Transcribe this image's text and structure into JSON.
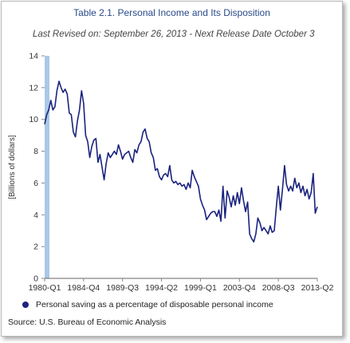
{
  "chart_data": {
    "type": "line",
    "title": "Table 2.1. Personal Income and Its Disposition",
    "subtitle": "Last Revised on: September 26, 2013 - Next Release Date October 3",
    "ylabel": "[Billions of dollars]",
    "xlabel": "",
    "ylim": [
      0,
      14
    ],
    "yticks": [
      "0",
      "2",
      "4",
      "6",
      "8",
      "10",
      "12",
      "14"
    ],
    "xticks": [
      {
        "label": "1980-Q1",
        "x": 1980.0
      },
      {
        "label": "1984-Q4",
        "x": 1984.75
      },
      {
        "label": "1989-Q3",
        "x": 1989.5
      },
      {
        "label": "1994-Q2",
        "x": 1994.25
      },
      {
        "label": "1999-Q1",
        "x": 1999.0
      },
      {
        "label": "2003-Q4",
        "x": 2003.75
      },
      {
        "label": "2008-Q3",
        "x": 2008.5
      },
      {
        "label": "2013-Q2",
        "x": 2013.25
      }
    ],
    "xlim": [
      1980.0,
      2013.25
    ],
    "grid": false,
    "legend_position": "bottom",
    "series": [
      {
        "name": "Personal saving as a percentage of disposable personal income",
        "color": "#1a237e",
        "points": [
          [
            1980.0,
            9.7
          ],
          [
            1980.25,
            10.3
          ],
          [
            1980.5,
            10.6
          ],
          [
            1980.75,
            11.2
          ],
          [
            1981.0,
            10.6
          ],
          [
            1981.25,
            10.8
          ],
          [
            1981.5,
            11.8
          ],
          [
            1981.75,
            12.4
          ],
          [
            1982.0,
            12.0
          ],
          [
            1982.25,
            11.7
          ],
          [
            1982.5,
            11.9
          ],
          [
            1982.75,
            11.6
          ],
          [
            1983.0,
            10.4
          ],
          [
            1983.25,
            10.3
          ],
          [
            1983.5,
            9.2
          ],
          [
            1983.75,
            8.9
          ],
          [
            1984.0,
            9.9
          ],
          [
            1984.25,
            10.6
          ],
          [
            1984.5,
            11.8
          ],
          [
            1984.75,
            11.0
          ],
          [
            1985.0,
            9.0
          ],
          [
            1985.25,
            8.6
          ],
          [
            1985.5,
            7.6
          ],
          [
            1985.75,
            8.3
          ],
          [
            1986.0,
            8.7
          ],
          [
            1986.25,
            8.8
          ],
          [
            1986.5,
            7.3
          ],
          [
            1986.75,
            7.8
          ],
          [
            1987.0,
            7.0
          ],
          [
            1987.25,
            6.2
          ],
          [
            1987.5,
            7.2
          ],
          [
            1987.75,
            7.9
          ],
          [
            1988.0,
            7.6
          ],
          [
            1988.25,
            7.8
          ],
          [
            1988.5,
            8.0
          ],
          [
            1988.75,
            7.8
          ],
          [
            1989.0,
            8.4
          ],
          [
            1989.25,
            8.0
          ],
          [
            1989.5,
            7.5
          ],
          [
            1989.75,
            7.8
          ],
          [
            1990.0,
            7.9
          ],
          [
            1990.25,
            8.0
          ],
          [
            1990.5,
            7.6
          ],
          [
            1990.75,
            7.3
          ],
          [
            1991.0,
            8.1
          ],
          [
            1991.25,
            7.9
          ],
          [
            1991.5,
            8.4
          ],
          [
            1991.75,
            8.6
          ],
          [
            1992.0,
            9.2
          ],
          [
            1992.25,
            9.4
          ],
          [
            1992.5,
            8.8
          ],
          [
            1992.75,
            8.6
          ],
          [
            1993.0,
            7.9
          ],
          [
            1993.25,
            7.6
          ],
          [
            1993.5,
            6.8
          ],
          [
            1993.75,
            6.9
          ],
          [
            1994.0,
            6.4
          ],
          [
            1994.25,
            6.2
          ],
          [
            1994.5,
            6.5
          ],
          [
            1994.75,
            6.6
          ],
          [
            1995.0,
            6.4
          ],
          [
            1995.25,
            7.1
          ],
          [
            1995.5,
            6.2
          ],
          [
            1995.75,
            6.0
          ],
          [
            1996.0,
            6.1
          ],
          [
            1996.25,
            5.9
          ],
          [
            1996.5,
            6.0
          ],
          [
            1996.75,
            5.8
          ],
          [
            1997.0,
            5.9
          ],
          [
            1997.25,
            5.6
          ],
          [
            1997.5,
            6.0
          ],
          [
            1997.75,
            5.7
          ],
          [
            1998.0,
            6.8
          ],
          [
            1998.25,
            6.4
          ],
          [
            1998.5,
            6.1
          ],
          [
            1998.75,
            5.8
          ],
          [
            1999.0,
            5.0
          ],
          [
            1999.25,
            4.6
          ],
          [
            1999.5,
            4.3
          ],
          [
            1999.75,
            3.7
          ],
          [
            2000.0,
            3.9
          ],
          [
            2000.25,
            4.1
          ],
          [
            2000.5,
            4.2
          ],
          [
            2000.75,
            4.2
          ],
          [
            2001.0,
            3.9
          ],
          [
            2001.25,
            4.3
          ],
          [
            2001.5,
            3.6
          ],
          [
            2001.75,
            5.8
          ],
          [
            2002.0,
            3.8
          ],
          [
            2002.25,
            5.5
          ],
          [
            2002.5,
            5.1
          ],
          [
            2002.75,
            4.5
          ],
          [
            2003.0,
            5.2
          ],
          [
            2003.25,
            4.6
          ],
          [
            2003.5,
            5.4
          ],
          [
            2003.75,
            4.7
          ],
          [
            2004.0,
            5.7
          ],
          [
            2004.25,
            4.9
          ],
          [
            2004.5,
            4.2
          ],
          [
            2004.75,
            4.8
          ],
          [
            2005.0,
            2.8
          ],
          [
            2005.25,
            2.5
          ],
          [
            2005.5,
            2.3
          ],
          [
            2005.75,
            2.8
          ],
          [
            2006.0,
            3.8
          ],
          [
            2006.25,
            3.5
          ],
          [
            2006.5,
            3.0
          ],
          [
            2006.75,
            3.2
          ],
          [
            2007.0,
            3.0
          ],
          [
            2007.25,
            2.8
          ],
          [
            2007.5,
            3.3
          ],
          [
            2007.75,
            2.9
          ],
          [
            2008.0,
            3.0
          ],
          [
            2008.25,
            4.5
          ],
          [
            2008.5,
            5.8
          ],
          [
            2008.75,
            4.3
          ],
          [
            2009.0,
            5.6
          ],
          [
            2009.25,
            7.1
          ],
          [
            2009.5,
            5.9
          ],
          [
            2009.75,
            5.5
          ],
          [
            2010.0,
            5.8
          ],
          [
            2010.25,
            5.5
          ],
          [
            2010.5,
            6.3
          ],
          [
            2010.75,
            5.7
          ],
          [
            2011.0,
            6.0
          ],
          [
            2011.25,
            5.4
          ],
          [
            2011.5,
            5.8
          ],
          [
            2011.75,
            5.2
          ],
          [
            2012.0,
            5.6
          ],
          [
            2012.25,
            5.0
          ],
          [
            2012.5,
            5.4
          ],
          [
            2012.75,
            6.6
          ],
          [
            2013.0,
            4.1
          ],
          [
            2013.25,
            4.5
          ]
        ]
      }
    ]
  },
  "legend": {
    "label": "Personal saving as a percentage of disposable personal income"
  },
  "source": "Source: U.S. Bureau of Economic Analysis"
}
